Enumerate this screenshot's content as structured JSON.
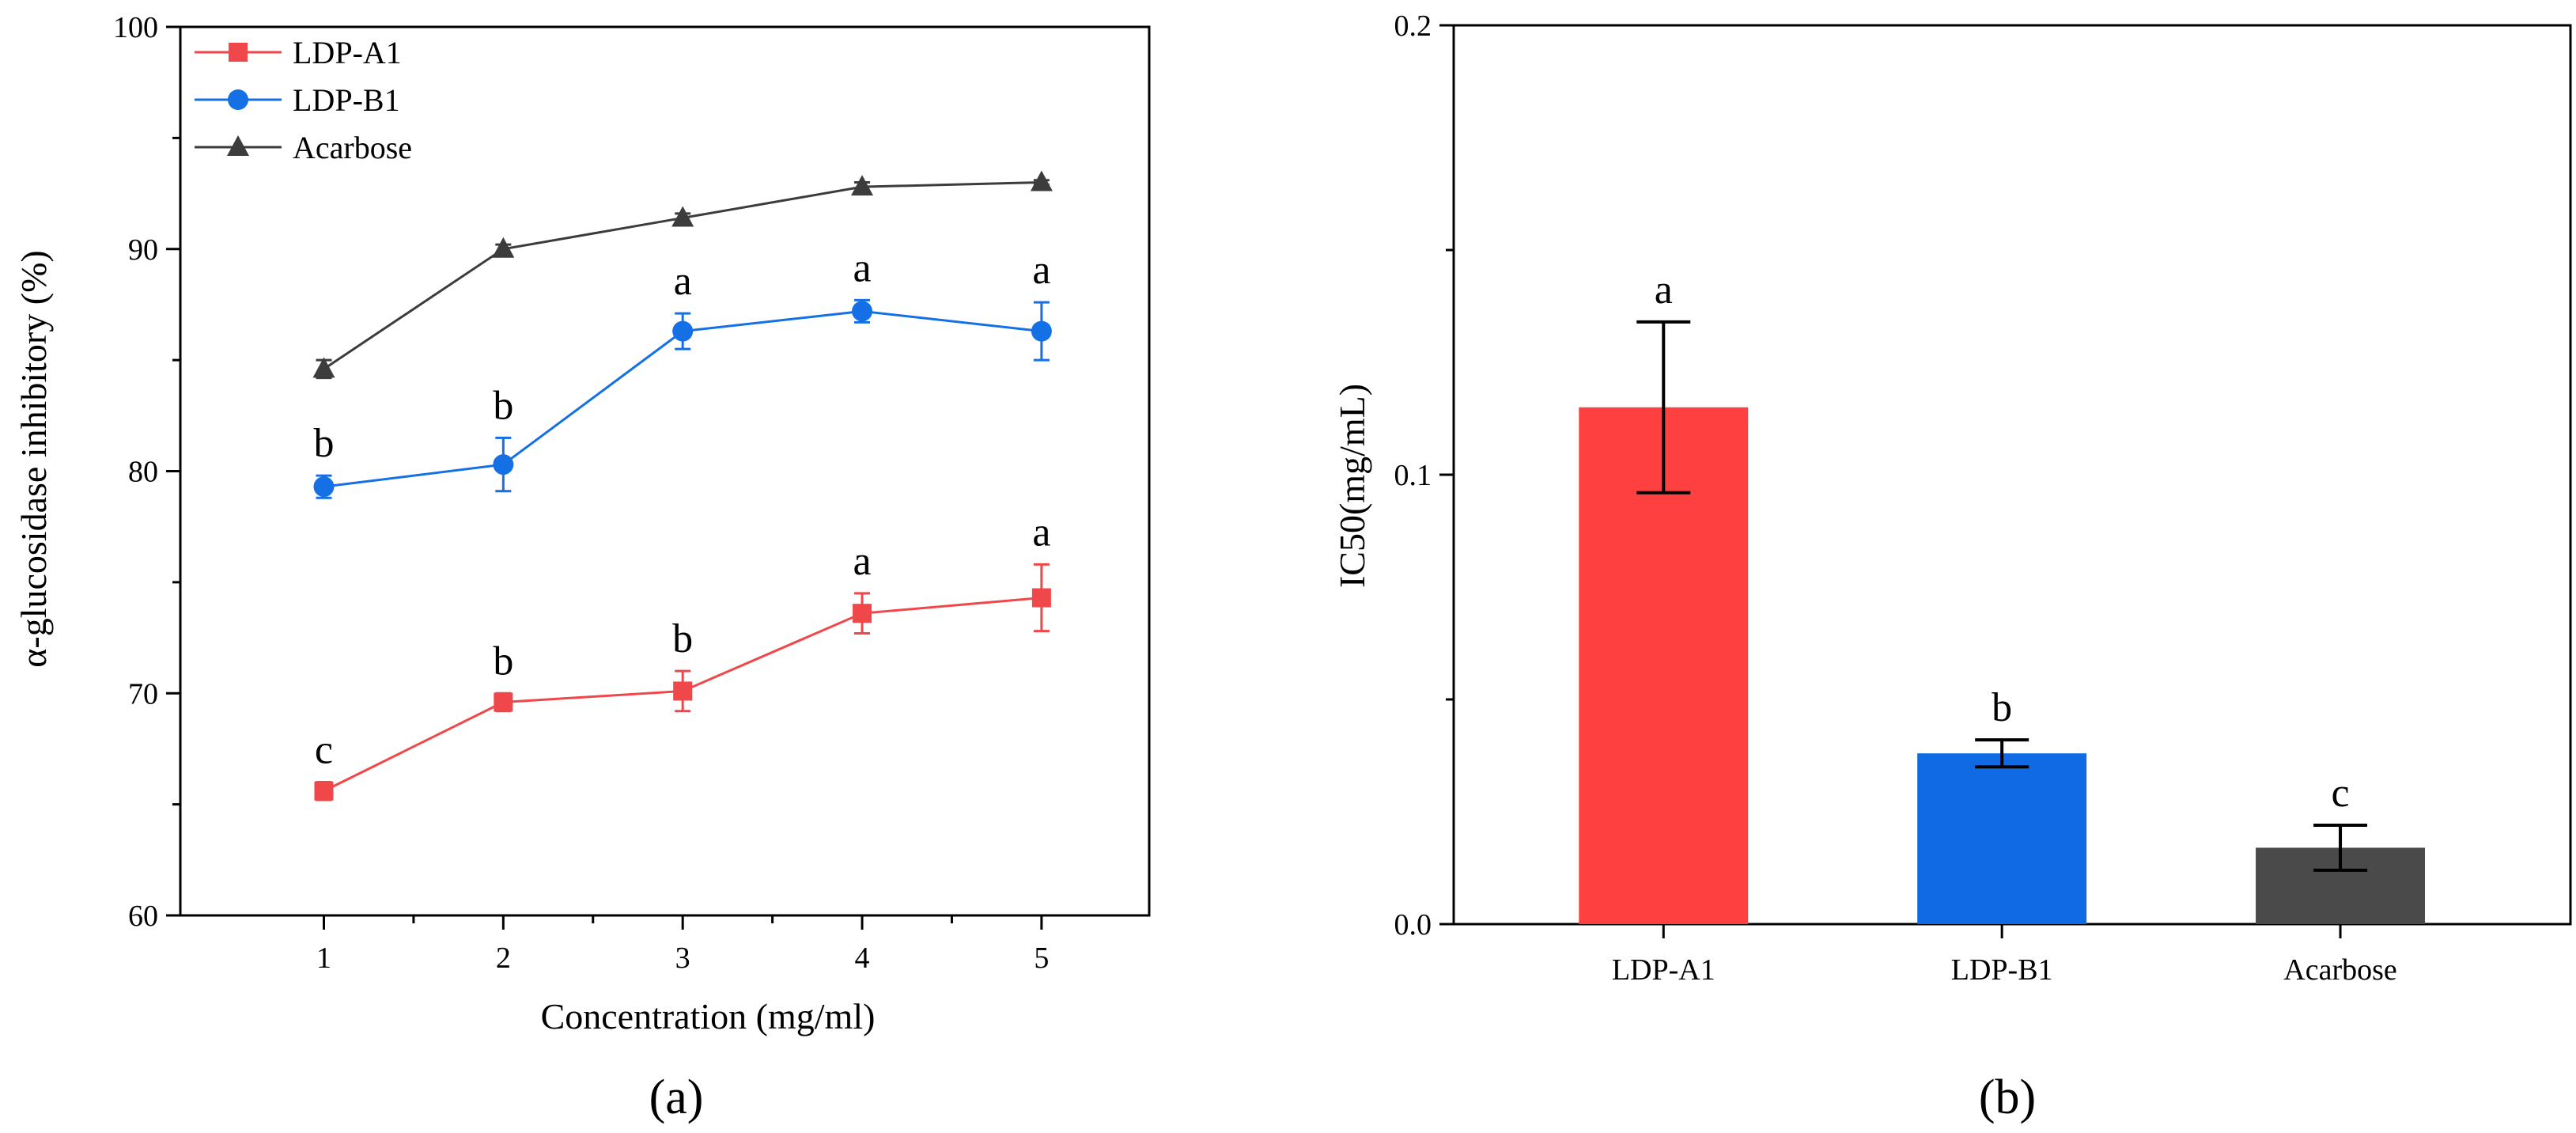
{
  "chart_data": [
    {
      "type": "line",
      "panel_label": "(a)",
      "xlabel": "Concentration (mg/ml)",
      "ylabel": "α-glucosidase inhibitory (%)",
      "x": [
        1,
        2,
        3,
        4,
        5
      ],
      "x_ticks": [
        "1",
        "2",
        "3",
        "4",
        "5"
      ],
      "xlim": [
        0.2,
        5.6
      ],
      "ylim": [
        60,
        100
      ],
      "y_ticks": [
        "60",
        "70",
        "80",
        "90",
        "100"
      ],
      "grid": false,
      "legend_position": "top-left",
      "series": [
        {
          "name": "LDP-A1",
          "color": "#f0474a",
          "marker": "square",
          "values": [
            65.6,
            69.6,
            70.1,
            73.6,
            74.3
          ],
          "errors": [
            0.4,
            0.4,
            0.9,
            0.9,
            1.5
          ],
          "labels": [
            "c",
            "b",
            "b",
            "a",
            "a"
          ]
        },
        {
          "name": "LDP-B1",
          "color": "#1570e6",
          "marker": "circle",
          "values": [
            79.3,
            80.3,
            86.3,
            87.2,
            86.3
          ],
          "errors": [
            0.5,
            1.2,
            0.8,
            0.5,
            1.3
          ],
          "labels": [
            "b",
            "b",
            "a",
            "a",
            "a"
          ]
        },
        {
          "name": "Acarbose",
          "color": "#3c3c3c",
          "marker": "triangle",
          "values": [
            84.6,
            90.0,
            91.4,
            92.8,
            93.0
          ],
          "errors": [
            0.4,
            0.2,
            0.2,
            0.2,
            0.1
          ],
          "labels": [
            "",
            "",
            "",
            "",
            ""
          ]
        }
      ]
    },
    {
      "type": "bar",
      "panel_label": "(b)",
      "xlabel": "",
      "ylabel": "IC50(mg/mL)",
      "categories": [
        "LDP-A1",
        "LDP-B1",
        "Acarbose"
      ],
      "values": [
        0.115,
        0.038,
        0.017
      ],
      "errors": [
        0.019,
        0.003,
        0.005
      ],
      "labels": [
        "a",
        "b",
        "c"
      ],
      "colors": [
        "#ff4040",
        "#0f6ae3",
        "#4a4a4a"
      ],
      "ylim": [
        0,
        0.2
      ],
      "y_ticks": [
        "0.0",
        "0.1",
        "0.2"
      ],
      "grid": false
    }
  ]
}
